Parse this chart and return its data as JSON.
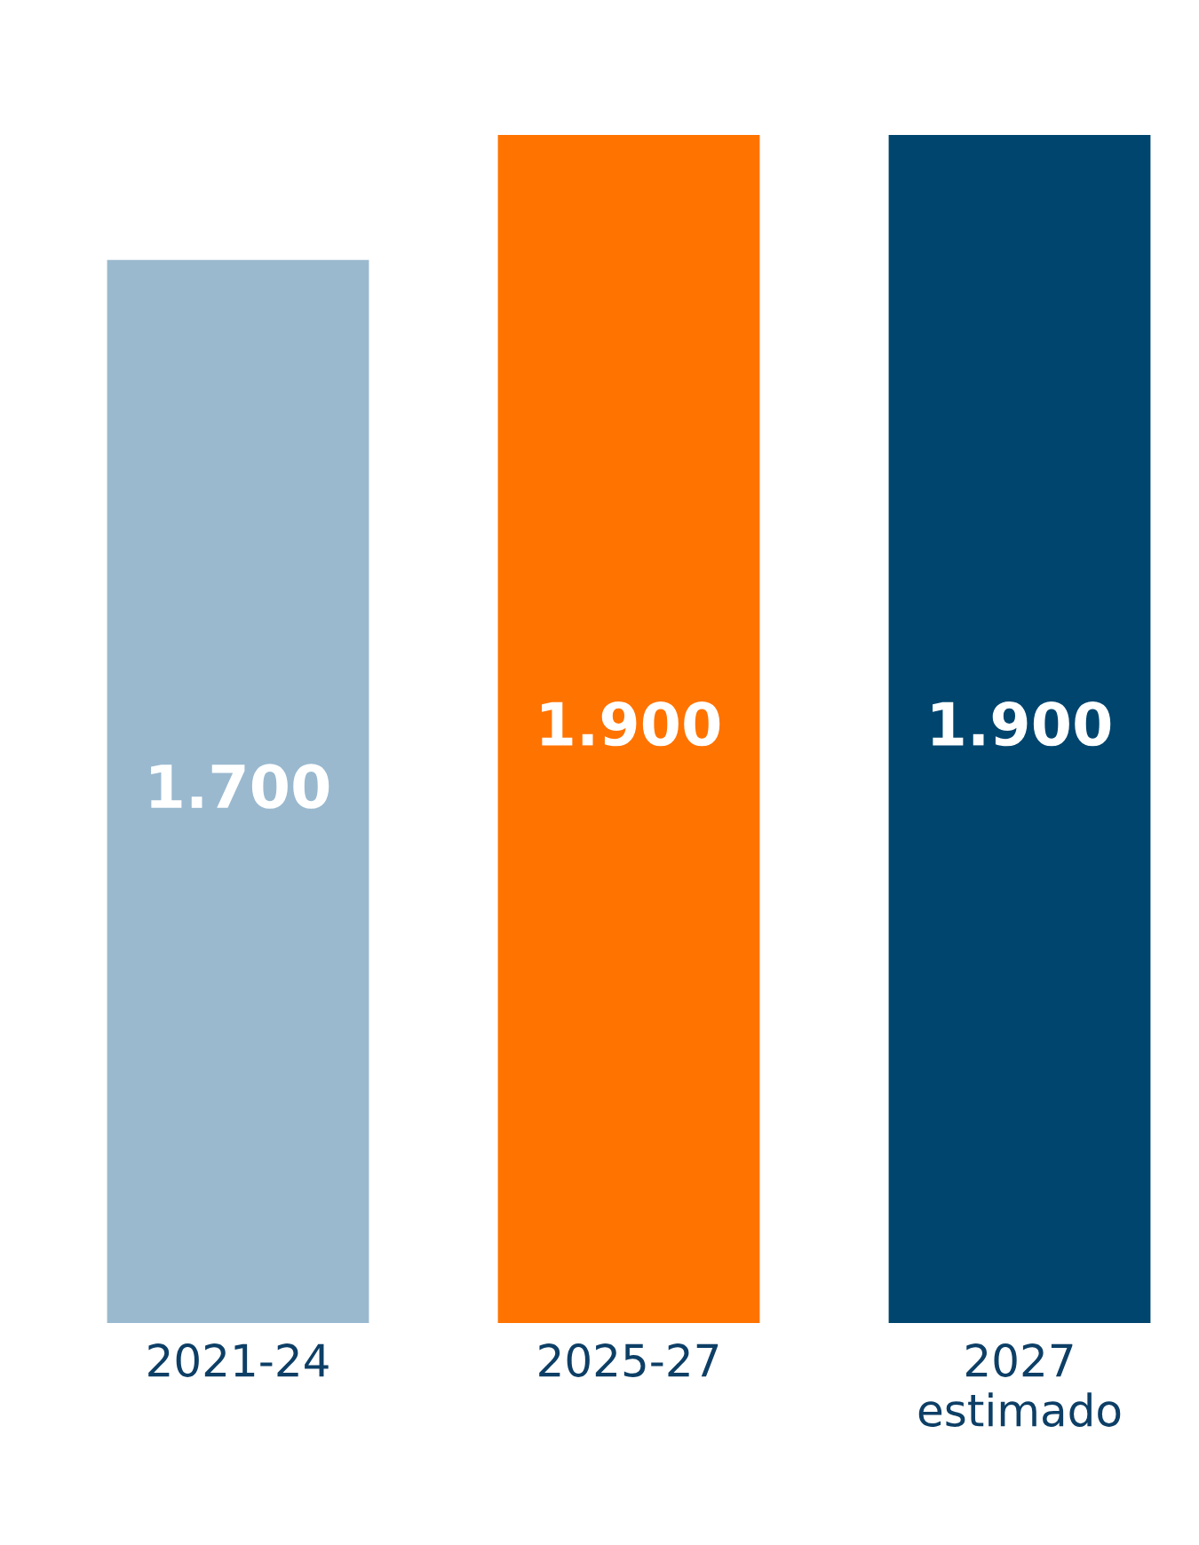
{
  "chart_data": {
    "type": "bar",
    "categories": [
      "2021-24",
      "2025-27",
      "2027\nestimado"
    ],
    "values": [
      1700,
      1900,
      1900
    ],
    "colors": [
      "#9ab9cf",
      "#ff7300",
      "#00456e"
    ],
    "value_labels": [
      "1.700",
      "1.900",
      "1.900"
    ],
    "grid": false,
    "legend": false
  }
}
